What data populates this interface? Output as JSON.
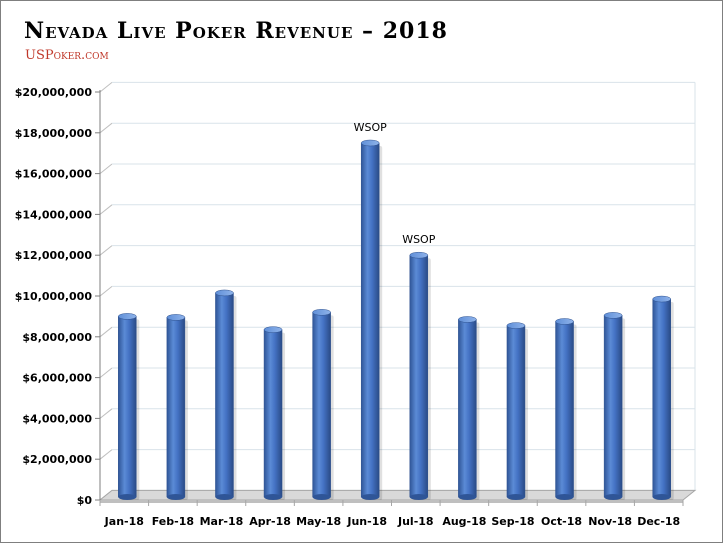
{
  "title": "Nevada Live Poker Revenue – 2018",
  "subtitle": "USPoker.com",
  "chart_data": {
    "type": "bar",
    "title": "Nevada Live Poker Revenue – 2018",
    "xlabel": "",
    "ylabel": "",
    "categories": [
      "Jan-18",
      "Feb-18",
      "Mar-18",
      "Apr-18",
      "May-18",
      "Jun-18",
      "Jul-18",
      "Aug-18",
      "Sep-18",
      "Oct-18",
      "Nov-18",
      "Dec-18"
    ],
    "values": [
      9000000,
      8950000,
      10150000,
      8350000,
      9200000,
      17500000,
      12000000,
      8850000,
      8550000,
      8750000,
      9050000,
      9850000
    ],
    "ylim": [
      0,
      20000000
    ],
    "yticks": [
      0,
      2000000,
      4000000,
      6000000,
      8000000,
      10000000,
      12000000,
      14000000,
      16000000,
      18000000,
      20000000
    ],
    "ytick_labels": [
      "$0",
      "$2,000,000",
      "$4,000,000",
      "$6,000,000",
      "$8,000,000",
      "$10,000,000",
      "$12,000,000",
      "$14,000,000",
      "$16,000,000",
      "$18,000,000",
      "$20,000,000"
    ],
    "annotations": [
      {
        "category": "Jun-18",
        "text": "WSOP"
      },
      {
        "category": "Jul-18",
        "text": "WSOP"
      }
    ],
    "grid": true,
    "legend": "none",
    "bar_color": "#4472c4"
  }
}
